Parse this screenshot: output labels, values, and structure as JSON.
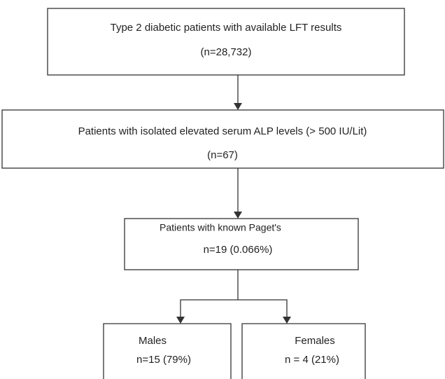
{
  "nodes": [
    {
      "label": "Type 2 diabetic patients with available LFT results",
      "count": "(n=28,732)"
    },
    {
      "label": "Patients with isolated elevated serum ALP levels (> 500 IU/Lit)",
      "count": "(n=67)"
    },
    {
      "label": "Patients with known Paget's",
      "count": "n=19  (0.066%)"
    },
    {
      "label": "Males",
      "count": "n=15 (79%)"
    },
    {
      "label": "Females",
      "count": "n = 4 (21%)"
    }
  ]
}
